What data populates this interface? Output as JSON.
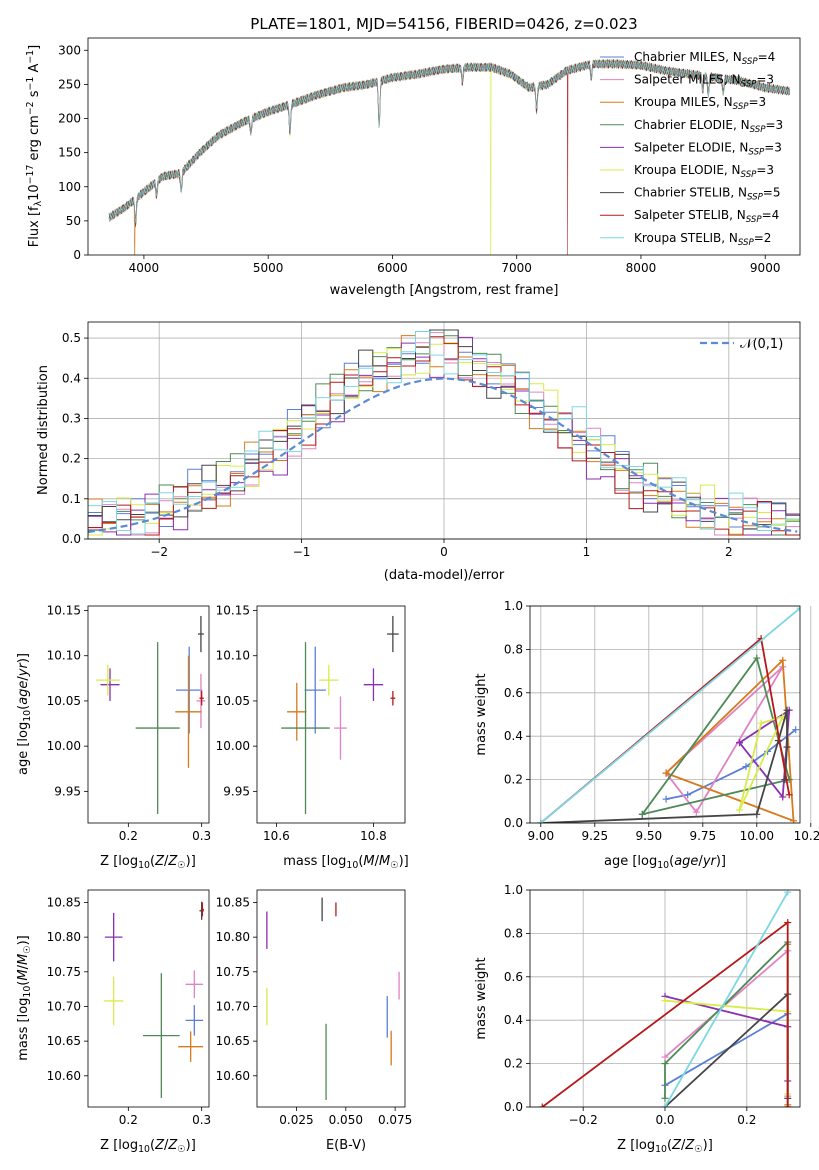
{
  "chart_data": [
    {
      "type": "line",
      "title": "PLATE=1801, MJD=54156, FIBERID=0426, z=0.023",
      "xlabel": "wavelength [Angstrom, rest frame]",
      "ylabel": "Flux [f_λ 10^-17 erg cm^-2 s^-1 A^-1]",
      "xlim": [
        3550,
        9280
      ],
      "ylim": [
        0,
        318
      ],
      "xticks": [
        4000,
        5000,
        6000,
        7000,
        8000,
        9000
      ],
      "yticks": [
        0,
        50,
        100,
        150,
        200,
        250,
        300
      ],
      "grid": false,
      "legend_position": "top-right",
      "legend": [
        {
          "model": "Chabrier MILES",
          "n": "4",
          "color": "#5b7fd6"
        },
        {
          "model": "Salpeter MILES",
          "n": "3",
          "color": "#e083c4"
        },
        {
          "model": "Kroupa MILES",
          "n": "3",
          "color": "#d77a1c"
        },
        {
          "model": "Chabrier ELODIE",
          "n": "3",
          "color": "#4e8a55"
        },
        {
          "model": "Salpeter ELODIE",
          "n": "3",
          "color": "#8a2fb0"
        },
        {
          "model": "Kroupa ELODIE",
          "n": "3",
          "color": "#d7ec4a"
        },
        {
          "model": "Chabrier STELIB",
          "n": "5",
          "color": "#454545"
        },
        {
          "model": "Salpeter STELIB",
          "n": "4",
          "color": "#b51a1a"
        },
        {
          "model": "Kroupa STELIB",
          "n": "2",
          "color": "#7dd7e2"
        }
      ],
      "continuum": {
        "x": [
          3720,
          3850,
          3950,
          4050,
          4150,
          4300,
          4450,
          4600,
          4800,
          5000,
          5200,
          5400,
          5600,
          5800,
          6000,
          6200,
          6400,
          6600,
          6800,
          6950,
          7100,
          7250,
          7400,
          7600,
          7800,
          8000,
          8200,
          8400,
          8600,
          8800,
          9000,
          9200
        ],
        "y": [
          55,
          70,
          85,
          100,
          115,
          120,
          150,
          175,
          195,
          210,
          222,
          235,
          245,
          250,
          260,
          265,
          272,
          275,
          275,
          265,
          245,
          250,
          270,
          280,
          280,
          278,
          270,
          265,
          260,
          255,
          245,
          240
        ]
      },
      "features": [
        {
          "x": 3933,
          "depth": 35
        },
        {
          "x": 4102,
          "depth": 20
        },
        {
          "x": 4300,
          "depth": 25
        },
        {
          "x": 4861,
          "depth": 20
        },
        {
          "x": 5175,
          "depth": 40
        },
        {
          "x": 5893,
          "depth": 65
        },
        {
          "x": 6563,
          "depth": 20
        },
        {
          "x": 7160,
          "depth": 35
        },
        {
          "x": 7600,
          "depth": 20
        },
        {
          "x": 8498,
          "depth": 20
        },
        {
          "x": 8542,
          "depth": 25
        },
        {
          "x": 8662,
          "depth": 20
        }
      ],
      "dropouts": [
        {
          "series": "Kroupa ELODIE",
          "x": 6790
        },
        {
          "series": "Salpeter STELIB",
          "x": 7410
        },
        {
          "series": "Kroupa MILES",
          "x": 3925
        }
      ]
    },
    {
      "type": "line",
      "xlabel": "(data-model)/error",
      "ylabel": "Normed distribution",
      "xlim": [
        -2.5,
        2.5
      ],
      "ylim": [
        0,
        0.54
      ],
      "xticks": [
        -2,
        -1,
        0,
        1,
        2
      ],
      "yticks": [
        0.0,
        0.1,
        0.2,
        0.3,
        0.4,
        0.5
      ],
      "grid": true,
      "legend_position": "top-right",
      "legend_label": "𝒩(0,1)",
      "bin_width": 0.1,
      "histogram_peak": 0.52
    },
    {
      "type": "scatter",
      "xlabel": "Z [log10(Z/Z☉)]",
      "ylabel": "age  [log10(age/yr)]",
      "xlim": [
        0.145,
        0.31
      ],
      "ylim": [
        9.915,
        10.155
      ],
      "xticks": [
        0.2,
        0.3
      ],
      "yticks": [
        9.95,
        10.0,
        10.05,
        10.1,
        10.15
      ],
      "grid": false,
      "points": [
        {
          "series": "Chabrier MILES",
          "x": 0.283,
          "y": 10.062,
          "xerr": 0.018,
          "yerr": 0.048
        },
        {
          "series": "Salpeter MILES",
          "x": 0.299,
          "y": 10.05,
          "xerr": 0.006,
          "yerr": 0.03
        },
        {
          "series": "Kroupa MILES",
          "x": 0.282,
          "y": 10.038,
          "xerr": 0.018,
          "yerr": 0.062
        },
        {
          "series": "Chabrier ELODIE",
          "x": 0.24,
          "y": 10.02,
          "xerr": 0.03,
          "yerr": 0.095
        },
        {
          "series": "Salpeter ELODIE",
          "x": 0.175,
          "y": 10.068,
          "xerr": 0.013,
          "yerr": 0.018
        },
        {
          "series": "Kroupa ELODIE",
          "x": 0.172,
          "y": 10.073,
          "xerr": 0.016,
          "yerr": 0.017
        },
        {
          "series": "Chabrier STELIB",
          "x": 0.299,
          "y": 10.124,
          "xerr": 0.004,
          "yerr": 0.02
        },
        {
          "series": "Salpeter STELIB",
          "x": 0.3,
          "y": 10.053,
          "xerr": 0.003,
          "yerr": 0.008
        }
      ]
    },
    {
      "type": "scatter",
      "xlabel": "mass [log10(M/M☉)]",
      "xlim": [
        10.56,
        10.865
      ],
      "ylim": [
        9.915,
        10.155
      ],
      "xticks": [
        10.6,
        10.8
      ],
      "yticks": [
        9.95,
        10.0,
        10.05,
        10.1,
        10.15
      ],
      "grid": false,
      "points": [
        {
          "series": "Chabrier MILES",
          "x": 10.68,
          "y": 10.062,
          "xerr": 0.022,
          "yerr": 0.048
        },
        {
          "series": "Salpeter MILES",
          "x": 10.732,
          "y": 10.02,
          "xerr": 0.013,
          "yerr": 0.035
        },
        {
          "series": "Kroupa MILES",
          "x": 10.642,
          "y": 10.038,
          "xerr": 0.02,
          "yerr": 0.032
        },
        {
          "series": "Chabrier ELODIE",
          "x": 10.66,
          "y": 10.02,
          "xerr": 0.05,
          "yerr": 0.095
        },
        {
          "series": "Salpeter ELODIE",
          "x": 10.8,
          "y": 10.068,
          "xerr": 0.02,
          "yerr": 0.018
        },
        {
          "series": "Kroupa ELODIE",
          "x": 10.708,
          "y": 10.073,
          "xerr": 0.02,
          "yerr": 0.017
        },
        {
          "series": "Chabrier STELIB",
          "x": 10.84,
          "y": 10.124,
          "xerr": 0.012,
          "yerr": 0.02
        },
        {
          "series": "Salpeter STELIB",
          "x": 10.84,
          "y": 10.053,
          "xerr": 0.005,
          "yerr": 0.008
        }
      ]
    },
    {
      "type": "line",
      "xlabel": "age  [log10(age/yr)]",
      "ylabel": "mass weight",
      "xlim": [
        8.95,
        10.2
      ],
      "ylim": [
        0,
        1.0
      ],
      "xticks": [
        9.0,
        9.25,
        9.5,
        9.75,
        10.0,
        10.25
      ],
      "yticks": [
        0.0,
        0.2,
        0.4,
        0.6,
        0.8,
        1.0
      ],
      "grid": true,
      "series": [
        {
          "name": "Chabrier MILES",
          "x": [
            9.58,
            9.68,
            9.95,
            10.05,
            10.18
          ],
          "y": [
            0.11,
            0.13,
            0.26,
            0.33,
            0.43
          ]
        },
        {
          "name": "Salpeter MILES",
          "x": [
            9.58,
            9.72,
            10.12,
            9.58
          ],
          "y": [
            0.23,
            0.05,
            0.72,
            0.23
          ]
        },
        {
          "name": "Kroupa MILES",
          "x": [
            9.58,
            10.12,
            10.17,
            9.58
          ],
          "y": [
            0.23,
            0.75,
            0.01,
            0.23
          ]
        },
        {
          "name": "Chabrier ELODIE",
          "x": [
            9.47,
            10.0,
            10.15,
            9.47
          ],
          "y": [
            0.04,
            0.76,
            0.2,
            0.04
          ]
        },
        {
          "name": "Salpeter ELODIE",
          "x": [
            9.92,
            10.12,
            10.15,
            9.92
          ],
          "y": [
            0.37,
            0.12,
            0.52,
            0.37
          ]
        },
        {
          "name": "Kroupa ELODIE",
          "x": [
            9.92,
            10.02,
            10.12,
            9.92
          ],
          "y": [
            0.06,
            0.46,
            0.49,
            0.06
          ]
        },
        {
          "name": "Chabrier STELIB",
          "x": [
            9.0,
            10.0,
            10.1,
            10.14,
            10.14,
            10.13
          ],
          "y": [
            0.0,
            0.04,
            0.38,
            0.52,
            0.35,
            0.2
          ]
        },
        {
          "name": "Salpeter STELIB",
          "x": [
            9.0,
            10.02,
            10.15
          ],
          "y": [
            0.0,
            0.85,
            0.13
          ]
        },
        {
          "name": "Kroupa STELIB",
          "x": [
            9.0,
            10.2
          ],
          "y": [
            0.0,
            0.99
          ]
        }
      ]
    },
    {
      "type": "scatter",
      "xlabel": "Z [log10(Z/Z☉)]",
      "ylabel": "mass [log10(M/M☉)]",
      "xlim": [
        0.145,
        0.31
      ],
      "ylim": [
        10.555,
        10.868
      ],
      "xticks": [
        0.2,
        0.3
      ],
      "yticks": [
        10.6,
        10.65,
        10.7,
        10.75,
        10.8,
        10.85
      ],
      "grid": false,
      "points": [
        {
          "series": "Chabrier MILES",
          "x": 0.29,
          "y": 10.68,
          "xerr": 0.012,
          "yerr": 0.022
        },
        {
          "series": "Salpeter MILES",
          "x": 0.29,
          "y": 10.732,
          "xerr": 0.012,
          "yerr": 0.02
        },
        {
          "series": "Kroupa MILES",
          "x": 0.285,
          "y": 10.642,
          "xerr": 0.017,
          "yerr": 0.022
        },
        {
          "series": "Chabrier ELODIE",
          "x": 0.245,
          "y": 10.658,
          "xerr": 0.025,
          "yerr": 0.09
        },
        {
          "series": "Salpeter ELODIE",
          "x": 0.18,
          "y": 10.8,
          "xerr": 0.012,
          "yerr": 0.035
        },
        {
          "series": "Kroupa ELODIE",
          "x": 0.18,
          "y": 10.708,
          "xerr": 0.013,
          "yerr": 0.035
        },
        {
          "series": "Chabrier STELIB",
          "x": 0.3,
          "y": 10.838,
          "xerr": 0.003,
          "yerr": 0.013
        },
        {
          "series": "Salpeter STELIB",
          "x": 0.301,
          "y": 10.84,
          "xerr": 0.002,
          "yerr": 0.01
        }
      ]
    },
    {
      "type": "scatter",
      "xlabel": "E(B-V)",
      "xlim": [
        0.005,
        0.08
      ],
      "ylim": [
        10.555,
        10.868
      ],
      "xticks": [
        0.025,
        0.05,
        0.075
      ],
      "yticks": [
        10.6,
        10.65,
        10.7,
        10.75,
        10.8,
        10.85
      ],
      "grid": false,
      "points": [
        {
          "series": "Chabrier MILES",
          "x": 0.071,
          "y": 10.685,
          "xerr": 0,
          "yerr": 0.03
        },
        {
          "series": "Salpeter MILES",
          "x": 0.077,
          "y": 10.73,
          "xerr": 0,
          "yerr": 0.02
        },
        {
          "series": "Kroupa MILES",
          "x": 0.073,
          "y": 10.64,
          "xerr": 0,
          "yerr": 0.025
        },
        {
          "series": "Chabrier ELODIE",
          "x": 0.04,
          "y": 10.62,
          "xerr": 0,
          "yerr": 0.055
        },
        {
          "series": "Salpeter ELODIE",
          "x": 0.01,
          "y": 10.81,
          "xerr": 0,
          "yerr": 0.027
        },
        {
          "series": "Kroupa ELODIE",
          "x": 0.01,
          "y": 10.7,
          "xerr": 0,
          "yerr": 0.027
        },
        {
          "series": "Chabrier STELIB",
          "x": 0.038,
          "y": 10.84,
          "xerr": 0,
          "yerr": 0.017
        },
        {
          "series": "Salpeter STELIB",
          "x": 0.045,
          "y": 10.84,
          "xerr": 0,
          "yerr": 0.01
        }
      ]
    },
    {
      "type": "line",
      "xlabel": "Z [log10(Z/Z☉)]",
      "ylabel": "mass weight",
      "xlim": [
        -0.33,
        0.33
      ],
      "ylim": [
        0,
        1.0
      ],
      "xticks": [
        -0.2,
        0.0,
        0.2
      ],
      "yticks": [
        0.0,
        0.2,
        0.4,
        0.6,
        0.8,
        1.0
      ],
      "grid": true,
      "series": [
        {
          "name": "Chabrier MILES",
          "x": [
            0.0,
            0.3
          ],
          "y": [
            0.1,
            0.43
          ]
        },
        {
          "name": "Salpeter MILES",
          "x": [
            0.0,
            0.3,
            0.3
          ],
          "y": [
            0.23,
            0.72,
            0.05
          ]
        },
        {
          "name": "Kroupa MILES",
          "x": [
            0.3,
            0.3
          ],
          "y": [
            0.75,
            0.01
          ]
        },
        {
          "name": "Chabrier ELODIE",
          "x": [
            0.0,
            0.0,
            0.3,
            0.3
          ],
          "y": [
            0.04,
            0.2,
            0.76,
            0.0
          ]
        },
        {
          "name": "Salpeter ELODIE",
          "x": [
            0.0,
            0.3,
            0.3
          ],
          "y": [
            0.51,
            0.37,
            0.12
          ]
        },
        {
          "name": "Kroupa ELODIE",
          "x": [
            0.0,
            0.3,
            0.3
          ],
          "y": [
            0.49,
            0.44,
            0.06
          ]
        },
        {
          "name": "Chabrier STELIB",
          "x": [
            0.0,
            0.3,
            0.3
          ],
          "y": [
            0.0,
            0.52,
            0.04
          ]
        },
        {
          "name": "Salpeter STELIB",
          "x": [
            -0.3,
            0.3,
            0.3
          ],
          "y": [
            0.0,
            0.85,
            0.0
          ]
        },
        {
          "name": "Kroupa STELIB",
          "x": [
            0.0,
            0.3
          ],
          "y": [
            0.0,
            0.99
          ]
        }
      ]
    }
  ]
}
